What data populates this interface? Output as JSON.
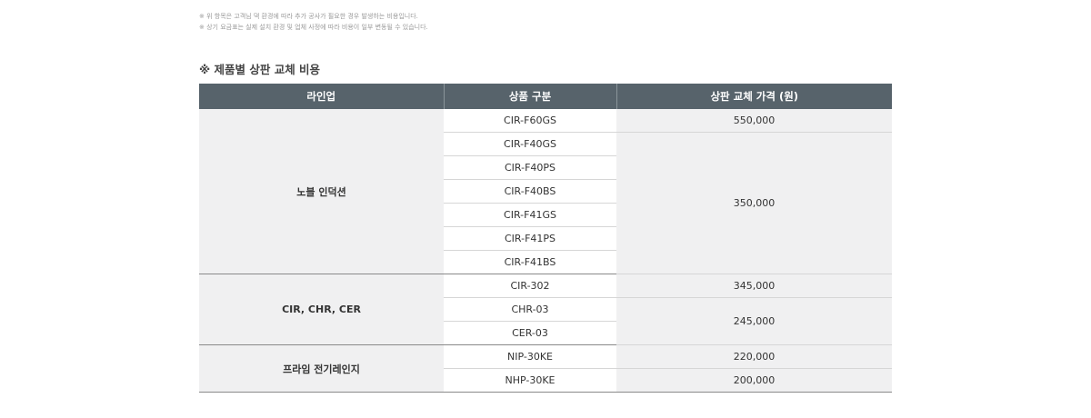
{
  "notes": [
    "※ 위 항목은 고객님 댁 환경에 따라 추가 공사가 필요한 경우 발생하는 비용입니다.",
    "※ 상기 요금표는 실제 설치 환경 및 업체 사정에 따라 비용이 일부 변동될 수 있습니다."
  ],
  "title": "※ 제품별 상판 교체 비용",
  "headers": [
    "라인업",
    "상품 구분",
    "상판 교체 가격 (원)"
  ],
  "groups": [
    {
      "line": "노블 인덕션",
      "products": [
        "CIR-F60GS",
        "CIR-F40GS",
        "CIR-F40PS",
        "CIR-F40BS",
        "CIR-F41GS",
        "CIR-F41PS",
        "CIR-F41BS"
      ],
      "prices": [
        {
          "value": "550,000",
          "span": 1
        },
        {
          "value": "350,000",
          "span": 6
        }
      ]
    },
    {
      "line": "CIR, CHR, CER",
      "products": [
        "CIR-302",
        "CHR-03",
        "CER-03"
      ],
      "prices": [
        {
          "value": "345,000",
          "span": 1
        },
        {
          "value": "245,000",
          "span": 2
        }
      ]
    },
    {
      "line": "프라임 전기레인지",
      "products": [
        "NIP-30KE",
        "NHP-30KE"
      ],
      "prices": [
        {
          "value": "220,000",
          "span": 1
        },
        {
          "value": "200,000",
          "span": 1
        }
      ]
    }
  ]
}
